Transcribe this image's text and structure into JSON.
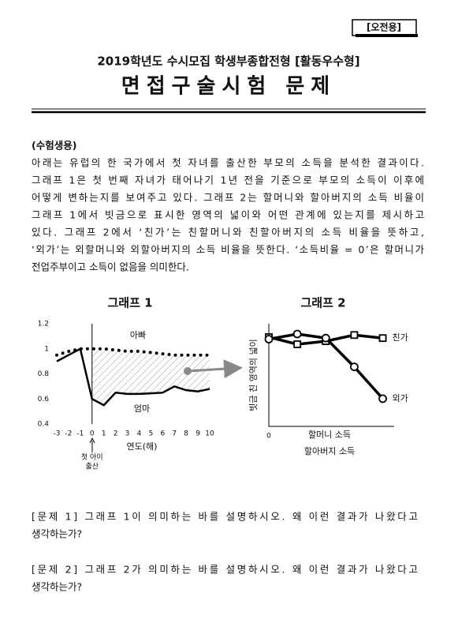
{
  "header": {
    "tag": "[오전용]",
    "subtitle": "2019학년도 수시모집 학생부종합전형 [활동우수형]",
    "title": "면접구술시험 문제"
  },
  "intro": {
    "label": "(수험생용)",
    "lines": [
      "아래는 유럽의 한 국가에서 첫 자녀를 출산한 부모의 소득을 분석한 결과이다.",
      "그래프 1은 첫 번째 자녀가 태어나기 1년 전을 기준으로 부모의 소득이 이후에",
      "어떻게 변하는지를 보여주고 있다. 그래프 2는 할머니와 할아버지의 소득 비율이",
      "그래프 1에서 빗금으로 표시한 영역의 넓이와 어떤 관계에 있는지를 제시하고",
      "있다. 그래프 2에서 ‘친가’는 친할머니와 친할아버지의 소득 비율을 뜻하고,",
      "‘외가’는 외할머니와 외할아버지의 소득 비율을 뜻한다. ‘소득비율 = 0’은 할머니가",
      "전업주부이고 소득이 없음을 의미한다."
    ]
  },
  "chart_data": [
    {
      "type": "line",
      "title": "그래프 1",
      "xlabel": "연도(해)",
      "annotation": [
        "첫 아이",
        "출산"
      ],
      "x": [
        -3,
        -2,
        -1,
        0,
        1,
        2,
        3,
        4,
        5,
        6,
        7,
        8,
        9,
        10
      ],
      "xlim": [
        -3,
        10
      ],
      "xticks": [
        -3,
        -2,
        -1,
        0,
        1,
        2,
        3,
        4,
        5,
        6,
        7,
        8,
        9,
        10
      ],
      "ylim": [
        0.4,
        1.2
      ],
      "yticks": [
        0.4,
        0.6,
        0.8,
        1,
        1.2
      ],
      "series": [
        {
          "name": "아빠",
          "color": "#000000",
          "style": "dotted",
          "values": [
            0.95,
            0.98,
            1.0,
            1.0,
            1.0,
            0.99,
            0.98,
            0.98,
            0.97,
            0.96,
            0.95,
            0.95,
            0.95,
            0.95
          ]
        },
        {
          "name": "엄마",
          "color": "#000000",
          "style": "solid",
          "values": [
            0.9,
            0.95,
            1.0,
            0.6,
            0.55,
            0.65,
            0.64,
            0.64,
            0.645,
            0.65,
            0.7,
            0.67,
            0.66,
            0.68
          ]
        }
      ]
    },
    {
      "type": "line",
      "title": "그래프 2",
      "ylabel": "빗금 친 영역의 넓이",
      "xlabel": [
        "할머니 소득",
        "할아버지 소득"
      ],
      "x": [
        0,
        1,
        2,
        3,
        4
      ],
      "xlim": [
        0,
        4.4
      ],
      "xticks": [
        0
      ],
      "ylim": [
        0,
        1
      ],
      "series": [
        {
          "name": "친가",
          "color": "#000000",
          "marker": "square",
          "values": [
            0.87,
            0.8,
            0.83,
            0.89,
            0.86
          ]
        },
        {
          "name": "외가",
          "color": "#000000",
          "marker": "circle",
          "values": [
            0.85,
            0.9,
            0.86,
            0.58,
            0.27
          ]
        }
      ]
    }
  ],
  "questions": [
    {
      "lines": [
        "[문제 1] 그래프 1이 의미하는 바를 설명하시오. 왜 이런 결과가 나왔다고",
        "생각하는가?"
      ]
    },
    {
      "lines": [
        "[문제 2] 그래프 2가 의미하는 바를 설명하시오. 왜 이런 결과가 나왔다고",
        "생각하는가?"
      ]
    }
  ]
}
